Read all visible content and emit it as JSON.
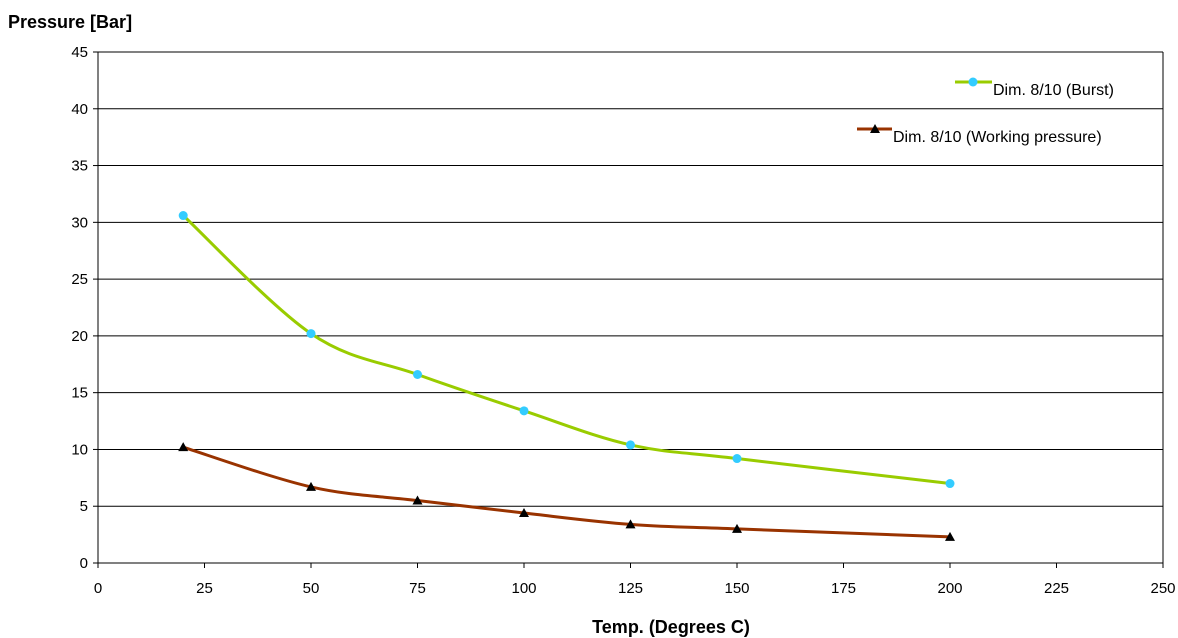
{
  "chart_data": {
    "type": "line",
    "title": "",
    "xlabel": "Temp. (Degrees C)",
    "ylabel": "Pressure [Bar]",
    "xlim": [
      0,
      250
    ],
    "ylim": [
      0,
      45
    ],
    "xticks": [
      0,
      25,
      50,
      75,
      100,
      125,
      150,
      175,
      200,
      225,
      250
    ],
    "yticks": [
      0,
      5,
      10,
      15,
      20,
      25,
      30,
      35,
      40,
      45
    ],
    "grid": "horizontal",
    "legend_position": "top-right",
    "series": [
      {
        "name": "Dim. 8/10 (Burst)",
        "color": "#99cc00",
        "marker": "circle",
        "marker_color": "#33ccff",
        "x": [
          20,
          50,
          75,
          100,
          125,
          150,
          200
        ],
        "y": [
          30.6,
          20.2,
          16.6,
          13.4,
          10.4,
          9.2,
          7.0
        ]
      },
      {
        "name": "Dim. 8/10 (Working pressure)",
        "color": "#993300",
        "marker": "triangle",
        "marker_color": "#000000",
        "x": [
          20,
          50,
          75,
          100,
          125,
          150,
          200
        ],
        "y": [
          10.2,
          6.7,
          5.5,
          4.4,
          3.4,
          3.0,
          2.3
        ]
      }
    ]
  }
}
